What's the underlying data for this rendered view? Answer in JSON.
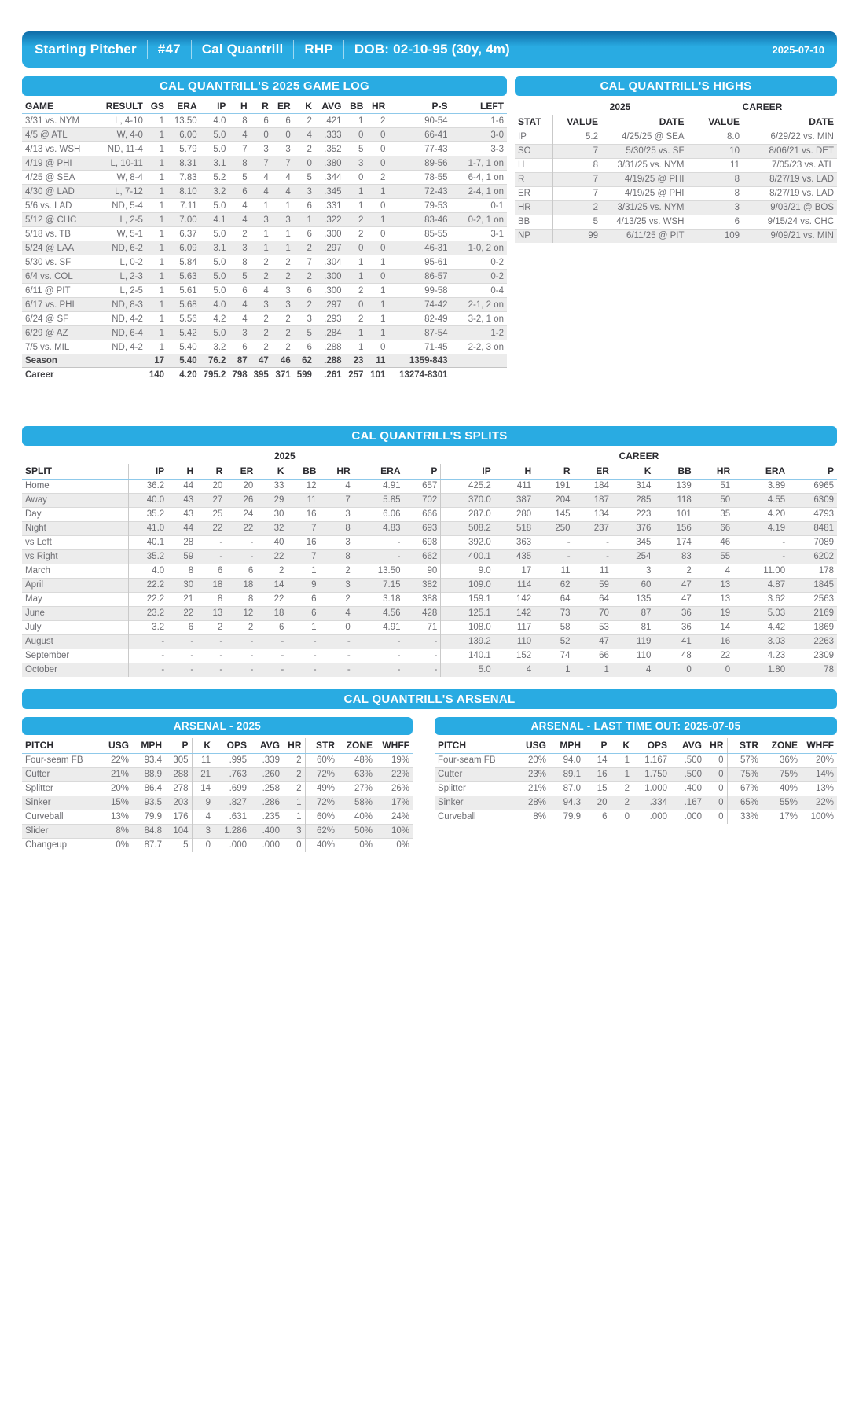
{
  "header": {
    "segments": [
      "Starting Pitcher",
      "#47",
      "Cal Quantrill",
      "RHP",
      "DOB: 02-10-95 (30y, 4m)"
    ],
    "date": "2025-07-10"
  },
  "game_log": {
    "title": "CAL QUANTRILL'S 2025 GAME LOG",
    "columns": [
      "GAME",
      "RESULT",
      "GS",
      "ERA",
      "IP",
      "H",
      "R",
      "ER",
      "K",
      "AVG",
      "BB",
      "HR",
      "P-S",
      "LEFT"
    ],
    "rows": [
      [
        "3/31 vs. NYM",
        "L, 4-10",
        "1",
        "13.50",
        "4.0",
        "8",
        "6",
        "6",
        "2",
        ".421",
        "1",
        "2",
        "90-54",
        "1-6"
      ],
      [
        "4/5 @ ATL",
        "W, 4-0",
        "1",
        "6.00",
        "5.0",
        "4",
        "0",
        "0",
        "4",
        ".333",
        "0",
        "0",
        "66-41",
        "3-0"
      ],
      [
        "4/13 vs. WSH",
        "ND, 11-4",
        "1",
        "5.79",
        "5.0",
        "7",
        "3",
        "3",
        "2",
        ".352",
        "5",
        "0",
        "77-43",
        "3-3"
      ],
      [
        "4/19 @ PHI",
        "L, 10-11",
        "1",
        "8.31",
        "3.1",
        "8",
        "7",
        "7",
        "0",
        ".380",
        "3",
        "0",
        "89-56",
        "1-7, 1 on"
      ],
      [
        "4/25 @ SEA",
        "W, 8-4",
        "1",
        "7.83",
        "5.2",
        "5",
        "4",
        "4",
        "5",
        ".344",
        "0",
        "2",
        "78-55",
        "6-4, 1 on"
      ],
      [
        "4/30 @ LAD",
        "L, 7-12",
        "1",
        "8.10",
        "3.2",
        "6",
        "4",
        "4",
        "3",
        ".345",
        "1",
        "1",
        "72-43",
        "2-4, 1 on"
      ],
      [
        "5/6 vs. LAD",
        "ND, 5-4",
        "1",
        "7.11",
        "5.0",
        "4",
        "1",
        "1",
        "6",
        ".331",
        "1",
        "0",
        "79-53",
        "0-1"
      ],
      [
        "5/12 @ CHC",
        "L, 2-5",
        "1",
        "7.00",
        "4.1",
        "4",
        "3",
        "3",
        "1",
        ".322",
        "2",
        "1",
        "83-46",
        "0-2, 1 on"
      ],
      [
        "5/18 vs. TB",
        "W, 5-1",
        "1",
        "6.37",
        "5.0",
        "2",
        "1",
        "1",
        "6",
        ".300",
        "2",
        "0",
        "85-55",
        "3-1"
      ],
      [
        "5/24 @ LAA",
        "ND, 6-2",
        "1",
        "6.09",
        "3.1",
        "3",
        "1",
        "1",
        "2",
        ".297",
        "0",
        "0",
        "46-31",
        "1-0, 2 on"
      ],
      [
        "5/30 vs. SF",
        "L, 0-2",
        "1",
        "5.84",
        "5.0",
        "8",
        "2",
        "2",
        "7",
        ".304",
        "1",
        "1",
        "95-61",
        "0-2"
      ],
      [
        "6/4 vs. COL",
        "L, 2-3",
        "1",
        "5.63",
        "5.0",
        "5",
        "2",
        "2",
        "2",
        ".300",
        "1",
        "0",
        "86-57",
        "0-2"
      ],
      [
        "6/11 @ PIT",
        "L, 2-5",
        "1",
        "5.61",
        "5.0",
        "6",
        "4",
        "3",
        "6",
        ".300",
        "2",
        "1",
        "99-58",
        "0-4"
      ],
      [
        "6/17 vs. PHI",
        "ND, 8-3",
        "1",
        "5.68",
        "4.0",
        "4",
        "3",
        "3",
        "2",
        ".297",
        "0",
        "1",
        "74-42",
        "2-1, 2 on"
      ],
      [
        "6/24 @ SF",
        "ND, 4-2",
        "1",
        "5.56",
        "4.2",
        "4",
        "2",
        "2",
        "3",
        ".293",
        "2",
        "1",
        "82-49",
        "3-2, 1 on"
      ],
      [
        "6/29 @ AZ",
        "ND, 6-4",
        "1",
        "5.42",
        "5.0",
        "3",
        "2",
        "2",
        "5",
        ".284",
        "1",
        "1",
        "87-54",
        "1-2"
      ],
      [
        "7/5 vs. MIL",
        "ND, 4-2",
        "1",
        "5.40",
        "3.2",
        "6",
        "2",
        "2",
        "6",
        ".288",
        "1",
        "0",
        "71-45",
        "2-2, 3 on"
      ]
    ],
    "totals": [
      [
        "Season",
        "",
        "17",
        "5.40",
        "76.2",
        "87",
        "47",
        "46",
        "62",
        ".288",
        "23",
        "11",
        "1359-843",
        ""
      ],
      [
        "Career",
        "",
        "140",
        "4.20",
        "795.2",
        "798",
        "395",
        "371",
        "599",
        ".261",
        "257",
        "101",
        "13274-8301",
        ""
      ]
    ]
  },
  "highs": {
    "title": "CAL QUANTRILL'S HIGHS",
    "group_2025": "2025",
    "group_career": "CAREER",
    "columns": [
      "STAT",
      "VALUE",
      "DATE",
      "VALUE",
      "DATE"
    ],
    "rows": [
      [
        "IP",
        "5.2",
        "4/25/25 @ SEA",
        "8.0",
        "6/29/22 vs. MIN"
      ],
      [
        "SO",
        "7",
        "5/30/25 vs. SF",
        "10",
        "8/06/21 vs. DET"
      ],
      [
        "H",
        "8",
        "3/31/25 vs. NYM",
        "11",
        "7/05/23 vs. ATL"
      ],
      [
        "R",
        "7",
        "4/19/25 @ PHI",
        "8",
        "8/27/19 vs. LAD"
      ],
      [
        "ER",
        "7",
        "4/19/25 @ PHI",
        "8",
        "8/27/19 vs. LAD"
      ],
      [
        "HR",
        "2",
        "3/31/25 vs. NYM",
        "3",
        "9/03/21 @ BOS"
      ],
      [
        "BB",
        "5",
        "4/13/25 vs. WSH",
        "6",
        "9/15/24 vs. CHC"
      ],
      [
        "NP",
        "99",
        "6/11/25 @ PIT",
        "109",
        "9/09/21 vs. MIN"
      ]
    ]
  },
  "splits": {
    "title": "CAL QUANTRILL'S SPLITS",
    "group_2025": "2025",
    "group_career": "CAREER",
    "columns": [
      "SPLIT",
      "IP",
      "H",
      "R",
      "ER",
      "K",
      "BB",
      "HR",
      "ERA",
      "P",
      "IP",
      "H",
      "R",
      "ER",
      "K",
      "BB",
      "HR",
      "ERA",
      "P"
    ],
    "rows": [
      [
        "Home",
        "36.2",
        "44",
        "20",
        "20",
        "33",
        "12",
        "4",
        "4.91",
        "657",
        "425.2",
        "411",
        "191",
        "184",
        "314",
        "139",
        "51",
        "3.89",
        "6965"
      ],
      [
        "Away",
        "40.0",
        "43",
        "27",
        "26",
        "29",
        "11",
        "7",
        "5.85",
        "702",
        "370.0",
        "387",
        "204",
        "187",
        "285",
        "118",
        "50",
        "4.55",
        "6309"
      ],
      [
        "Day",
        "35.2",
        "43",
        "25",
        "24",
        "30",
        "16",
        "3",
        "6.06",
        "666",
        "287.0",
        "280",
        "145",
        "134",
        "223",
        "101",
        "35",
        "4.20",
        "4793"
      ],
      [
        "Night",
        "41.0",
        "44",
        "22",
        "22",
        "32",
        "7",
        "8",
        "4.83",
        "693",
        "508.2",
        "518",
        "250",
        "237",
        "376",
        "156",
        "66",
        "4.19",
        "8481"
      ],
      [
        "vs Left",
        "40.1",
        "28",
        "-",
        "-",
        "40",
        "16",
        "3",
        "-",
        "698",
        "392.0",
        "363",
        "-",
        "-",
        "345",
        "174",
        "46",
        "-",
        "7089"
      ],
      [
        "vs Right",
        "35.2",
        "59",
        "-",
        "-",
        "22",
        "7",
        "8",
        "-",
        "662",
        "400.1",
        "435",
        "-",
        "-",
        "254",
        "83",
        "55",
        "-",
        "6202"
      ],
      [
        "March",
        "4.0",
        "8",
        "6",
        "6",
        "2",
        "1",
        "2",
        "13.50",
        "90",
        "9.0",
        "17",
        "11",
        "11",
        "3",
        "2",
        "4",
        "11.00",
        "178"
      ],
      [
        "April",
        "22.2",
        "30",
        "18",
        "18",
        "14",
        "9",
        "3",
        "7.15",
        "382",
        "109.0",
        "114",
        "62",
        "59",
        "60",
        "47",
        "13",
        "4.87",
        "1845"
      ],
      [
        "May",
        "22.2",
        "21",
        "8",
        "8",
        "22",
        "6",
        "2",
        "3.18",
        "388",
        "159.1",
        "142",
        "64",
        "64",
        "135",
        "47",
        "13",
        "3.62",
        "2563"
      ],
      [
        "June",
        "23.2",
        "22",
        "13",
        "12",
        "18",
        "6",
        "4",
        "4.56",
        "428",
        "125.1",
        "142",
        "73",
        "70",
        "87",
        "36",
        "19",
        "5.03",
        "2169"
      ],
      [
        "July",
        "3.2",
        "6",
        "2",
        "2",
        "6",
        "1",
        "0",
        "4.91",
        "71",
        "108.0",
        "117",
        "58",
        "53",
        "81",
        "36",
        "14",
        "4.42",
        "1869"
      ],
      [
        "August",
        "-",
        "-",
        "-",
        "-",
        "-",
        "-",
        "-",
        "-",
        "-",
        "139.2",
        "110",
        "52",
        "47",
        "119",
        "41",
        "16",
        "3.03",
        "2263"
      ],
      [
        "September",
        "-",
        "-",
        "-",
        "-",
        "-",
        "-",
        "-",
        "-",
        "-",
        "140.1",
        "152",
        "74",
        "66",
        "110",
        "48",
        "22",
        "4.23",
        "2309"
      ],
      [
        "October",
        "-",
        "-",
        "-",
        "-",
        "-",
        "-",
        "-",
        "-",
        "-",
        "5.0",
        "4",
        "1",
        "1",
        "4",
        "0",
        "0",
        "1.80",
        "78"
      ]
    ]
  },
  "arsenal": {
    "title": "CAL QUANTRILL'S ARSENAL",
    "tables": [
      {
        "title": "ARSENAL - 2025",
        "columns": [
          "PITCH",
          "USG",
          "MPH",
          "P",
          "K",
          "OPS",
          "AVG",
          "HR",
          "STR",
          "ZONE",
          "WHFF"
        ],
        "rows": [
          [
            "Four-seam FB",
            "22%",
            "93.4",
            "305",
            "11",
            ".995",
            ".339",
            "2",
            "60%",
            "48%",
            "19%"
          ],
          [
            "Cutter",
            "21%",
            "88.9",
            "288",
            "21",
            ".763",
            ".260",
            "2",
            "72%",
            "63%",
            "22%"
          ],
          [
            "Splitter",
            "20%",
            "86.4",
            "278",
            "14",
            ".699",
            ".258",
            "2",
            "49%",
            "27%",
            "26%"
          ],
          [
            "Sinker",
            "15%",
            "93.5",
            "203",
            "9",
            ".827",
            ".286",
            "1",
            "72%",
            "58%",
            "17%"
          ],
          [
            "Curveball",
            "13%",
            "79.9",
            "176",
            "4",
            ".631",
            ".235",
            "1",
            "60%",
            "40%",
            "24%"
          ],
          [
            "Slider",
            "8%",
            "84.8",
            "104",
            "3",
            "1.286",
            ".400",
            "3",
            "62%",
            "50%",
            "10%"
          ],
          [
            "Changeup",
            "0%",
            "87.7",
            "5",
            "0",
            ".000",
            ".000",
            "0",
            "40%",
            "0%",
            "0%"
          ]
        ]
      },
      {
        "title": "ARSENAL - LAST TIME OUT: 2025-07-05",
        "columns": [
          "PITCH",
          "USG",
          "MPH",
          "P",
          "K",
          "OPS",
          "AVG",
          "HR",
          "STR",
          "ZONE",
          "WHFF"
        ],
        "rows": [
          [
            "Four-seam FB",
            "20%",
            "94.0",
            "14",
            "1",
            "1.167",
            ".500",
            "0",
            "57%",
            "36%",
            "20%"
          ],
          [
            "Cutter",
            "23%",
            "89.1",
            "16",
            "1",
            "1.750",
            ".500",
            "0",
            "75%",
            "75%",
            "14%"
          ],
          [
            "Splitter",
            "21%",
            "87.0",
            "15",
            "2",
            "1.000",
            ".400",
            "0",
            "67%",
            "40%",
            "13%"
          ],
          [
            "Sinker",
            "28%",
            "94.3",
            "20",
            "2",
            ".334",
            ".167",
            "0",
            "65%",
            "55%",
            "22%"
          ],
          [
            "Curveball",
            "8%",
            "79.9",
            "6",
            "0",
            ".000",
            ".000",
            "0",
            "33%",
            "17%",
            "100%"
          ]
        ]
      }
    ]
  },
  "colors": {
    "accent": "#29abe2",
    "banner_text": "#ffffff",
    "header_text": "#29292e",
    "data_text": "#6d6d72",
    "row_alt": "#ececec"
  }
}
